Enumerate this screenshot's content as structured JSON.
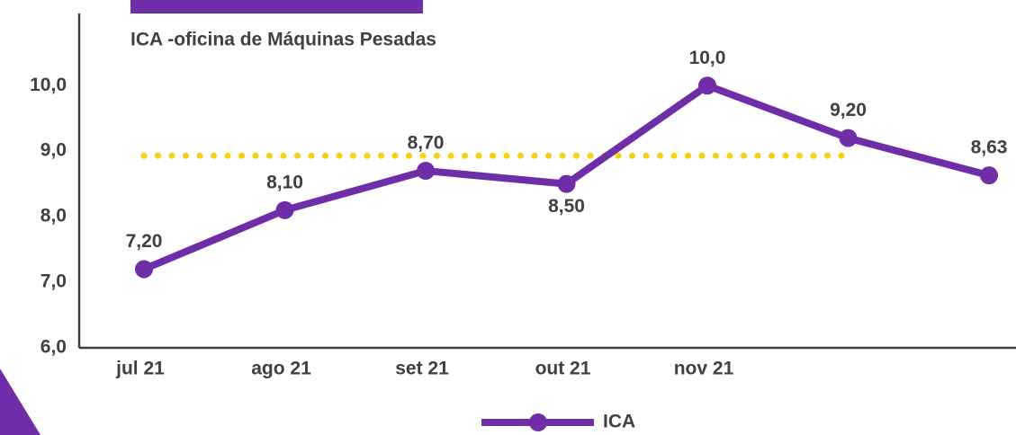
{
  "chart_data": {
    "type": "line",
    "subtitle": "ICA -oficina de Máquinas Pesadas",
    "categories": [
      "jul 21",
      "ago 21",
      "set 21",
      "out 21",
      "nov 21",
      null,
      null
    ],
    "series": [
      {
        "name": "ICA",
        "color": "#6f2da8",
        "values": [
          7.2,
          8.1,
          8.7,
          8.5,
          10.0,
          9.2,
          8.63
        ],
        "value_labels": [
          "7,20",
          "8,10",
          "8,70",
          "8,50",
          "10,0",
          "9,20",
          "8,63"
        ]
      }
    ],
    "reference_line": {
      "value": 8.93,
      "color": "#f5d312"
    },
    "ylim": [
      6,
      11.1
    ],
    "yticks": [
      {
        "value": 6,
        "label": "6,0"
      },
      {
        "value": 7,
        "label": "7,0"
      },
      {
        "value": 8,
        "label": "8,0"
      },
      {
        "value": 9,
        "label": "9,0"
      },
      {
        "value": 10,
        "label": "10,0"
      }
    ],
    "legend": "bottom"
  }
}
